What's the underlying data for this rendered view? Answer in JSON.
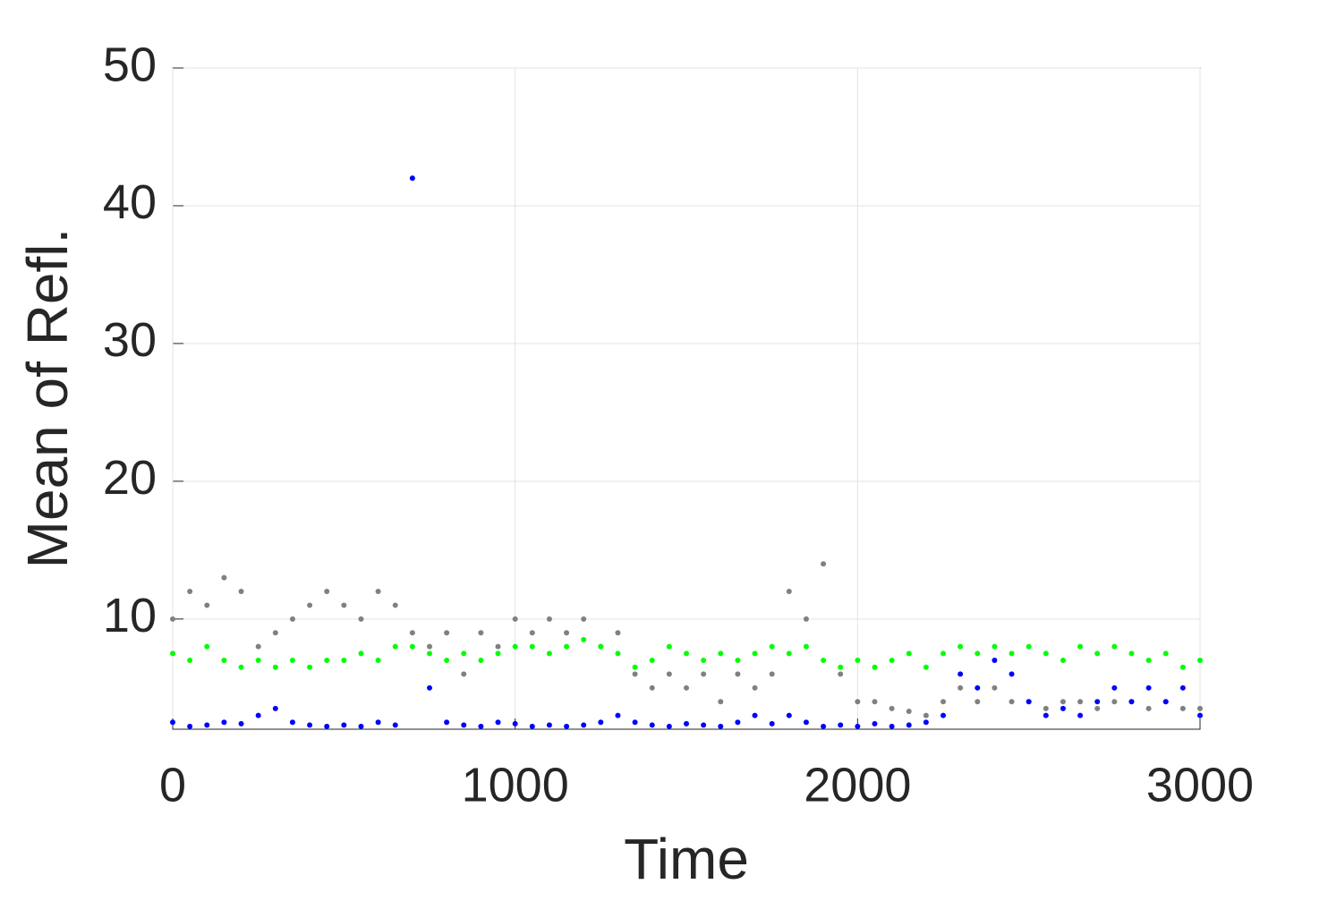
{
  "chart_data": {
    "type": "scatter",
    "x_label": "Time",
    "y_label": "Mean of Refl.",
    "xlim": [
      0,
      3000
    ],
    "xticks": [
      0,
      1000,
      2000,
      3000
    ],
    "ylim": [
      2,
      50
    ],
    "yticks": [
      10,
      20,
      30,
      40,
      50
    ],
    "grid": true,
    "x": [
      0,
      50,
      100,
      150,
      200,
      250,
      300,
      350,
      400,
      450,
      500,
      550,
      600,
      650,
      700,
      750,
      800,
      850,
      900,
      950,
      1000,
      1050,
      1100,
      1150,
      1200,
      1250,
      1300,
      1350,
      1400,
      1450,
      1500,
      1550,
      1600,
      1650,
      1700,
      1750,
      1800,
      1850,
      1900,
      1950,
      2000,
      2050,
      2100,
      2150,
      2200,
      2250,
      2300,
      2350,
      2400,
      2450,
      2500,
      2550,
      2600,
      2650,
      2700,
      2750,
      2800,
      2850,
      2900,
      2950,
      3000
    ],
    "series": [
      {
        "color": "#808080",
        "values": [
          10,
          12,
          11,
          13,
          12,
          8,
          9,
          10,
          11,
          12,
          11,
          10,
          12,
          11,
          9,
          8,
          9,
          6,
          9,
          8,
          10,
          9,
          10,
          9,
          10,
          8,
          9,
          6,
          5,
          6,
          5,
          6,
          4,
          6,
          5,
          6,
          12,
          10,
          14,
          6,
          4,
          4,
          3.5,
          3.3,
          3,
          4,
          5,
          4,
          5,
          4,
          4,
          3.5,
          4,
          4,
          3.5,
          4,
          4,
          3.5,
          4,
          3.5,
          3.5
        ]
      },
      {
        "color": "#0000ff",
        "values": [
          2.5,
          2.2,
          2.3,
          2.5,
          2.4,
          3,
          3.5,
          2.5,
          2.3,
          2.2,
          2.3,
          2.2,
          2.5,
          2.3,
          42,
          5,
          2.5,
          2.3,
          2.2,
          2.5,
          2.4,
          2.2,
          2.3,
          2.2,
          2.3,
          2.5,
          3,
          2.5,
          2.3,
          2.2,
          2.4,
          2.3,
          2.2,
          2.5,
          3,
          2.4,
          3,
          2.5,
          2.2,
          2.3,
          2.2,
          2.4,
          2.2,
          2.3,
          2.5,
          3,
          6,
          5,
          7,
          6,
          4,
          3,
          3.5,
          3,
          4,
          5,
          4,
          5,
          4,
          5,
          3
        ]
      },
      {
        "color": "#00ff00",
        "values": [
          7.5,
          7,
          8,
          7,
          6.5,
          7,
          6.5,
          7,
          6.5,
          7,
          7,
          7.5,
          7,
          8,
          8,
          7.5,
          7,
          7.5,
          7,
          7.5,
          8,
          8,
          7.5,
          8,
          8.5,
          8,
          7.5,
          6.5,
          7,
          8,
          7.5,
          7,
          7.5,
          7,
          7.5,
          8,
          7.5,
          8,
          7,
          6.5,
          7,
          6.5,
          7,
          7.5,
          6.5,
          7.5,
          8,
          7.5,
          8,
          7.5,
          8,
          7.5,
          7,
          8,
          7.5,
          8,
          7.5,
          7,
          7.5,
          6.5,
          7
        ]
      }
    ]
  }
}
